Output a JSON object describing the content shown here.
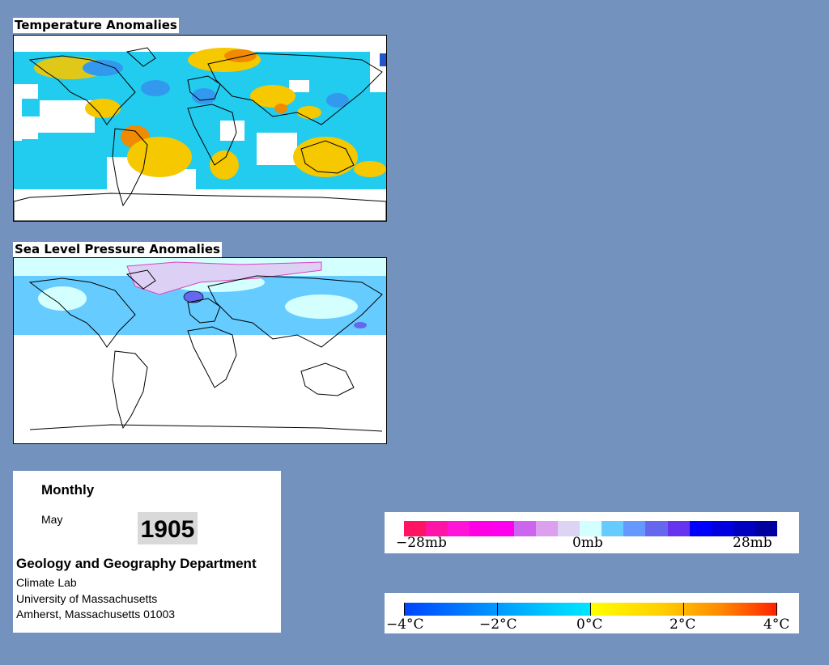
{
  "temperature_panel": {
    "title": "Temperature Anomalies"
  },
  "pressure_panel": {
    "title": "Sea Level Pressure Anomalies"
  },
  "info": {
    "heading": "Monthly",
    "month": "May",
    "year": "1905",
    "department": "Geology and Geography Department",
    "lab": "Climate Lab",
    "university": "University of Massachusetts",
    "address": "Amherst, Massachusetts 01003"
  },
  "pressure_legend": {
    "min_label": "−28mb",
    "mid_label": "0mb",
    "max_label": "28mb",
    "colors": [
      "#ff1464",
      "#ff14a8",
      "#ff14d8",
      "#ff00e6",
      "#ff00ee",
      "#cc66ee",
      "#dda0ee",
      "#ddd4f4",
      "#d4ffff",
      "#66ccff",
      "#6699ff",
      "#6666ee",
      "#6633ee",
      "#0000ff",
      "#0000e0",
      "#0000c0",
      "#0000a0"
    ]
  },
  "temperature_legend": {
    "labels": [
      "−4°C",
      "−2°C",
      "0°C",
      "2°C",
      "4°C"
    ],
    "colors": [
      "#0044ff",
      "#0099ff",
      "#00ccff",
      "#00e6ff",
      "#ffff00",
      "#ffcc00",
      "#ff8800",
      "#ff2200"
    ]
  }
}
